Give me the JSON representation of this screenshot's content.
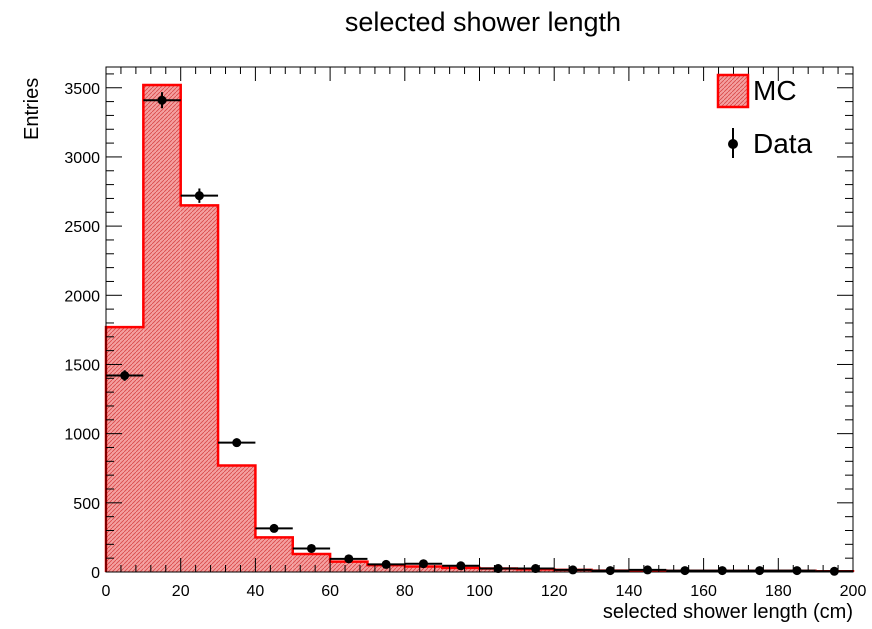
{
  "chart_data": {
    "type": "bar",
    "title": "selected shower length",
    "xlabel": "selected shower length (cm)",
    "ylabel": "Entries",
    "xlim": [
      0,
      200
    ],
    "ylim": [
      0,
      3650
    ],
    "bin_width": 10,
    "x_ticks": [
      0,
      20,
      40,
      60,
      80,
      100,
      120,
      140,
      160,
      180,
      200
    ],
    "y_ticks": [
      0,
      500,
      1000,
      1500,
      2000,
      2500,
      3000,
      3500
    ],
    "legend_position": "top-right",
    "grid": false,
    "series": [
      {
        "name": "MC",
        "kind": "histogram",
        "color": "#ff0000",
        "fill": "#f08080",
        "bin_centers": [
          5,
          15,
          25,
          35,
          45,
          55,
          65,
          75,
          85,
          95,
          105,
          115,
          125,
          135,
          145,
          155,
          165,
          175,
          185,
          195
        ],
        "values": [
          1770,
          3520,
          2650,
          770,
          250,
          130,
          75,
          50,
          40,
          30,
          25,
          20,
          15,
          10,
          10,
          8,
          8,
          8,
          8,
          5
        ]
      },
      {
        "name": "Data",
        "kind": "points_with_errors",
        "color": "#000000",
        "bin_centers": [
          5,
          15,
          25,
          35,
          45,
          55,
          65,
          75,
          85,
          95,
          105,
          115,
          125,
          135,
          145,
          155,
          165,
          175,
          185,
          195
        ],
        "values": [
          1420,
          3410,
          2720,
          935,
          315,
          170,
          95,
          55,
          60,
          45,
          25,
          25,
          15,
          10,
          15,
          10,
          10,
          10,
          10,
          5
        ],
        "errors": [
          38,
          58,
          52,
          31,
          18,
          13,
          10,
          7,
          8,
          7,
          5,
          5,
          4,
          3,
          4,
          3,
          3,
          3,
          3,
          2
        ]
      }
    ]
  }
}
